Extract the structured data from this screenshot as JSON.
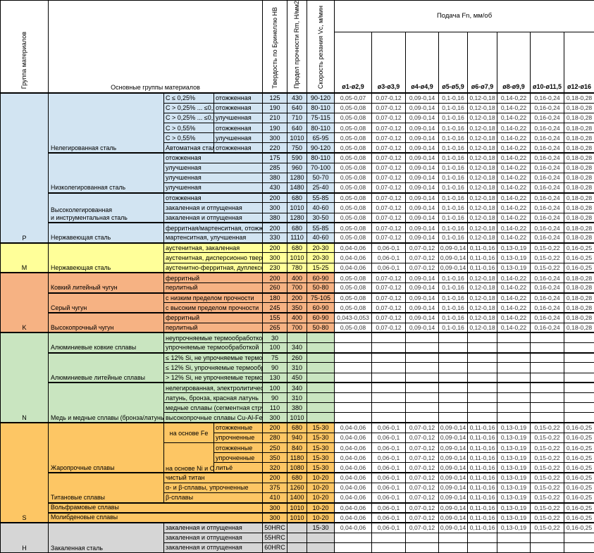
{
  "header": {
    "group_col": "Группа материалов",
    "main_col": "Основные группы материалов",
    "hardness_col": "Твердость по Бринеллю HB",
    "strength_col": "Предел прочности Rm, Н/мм2",
    "speed_col": "Скорость резания Vc, м/мин",
    "feed_title": "Подача Fn, мм/об",
    "feed_cols": [
      "ø1-ø2,9",
      "ø3-ø3,9",
      "ø4-ø4,9",
      "ø5-ø5,9",
      "ø6-ø7,9",
      "ø8-ø9,9",
      "ø10-ø11,5",
      "ø12-ø16"
    ]
  },
  "feed_presets": {
    "p_first": [
      "0,05-0,07",
      "0,07-0,12",
      "0,09-0,14",
      "0,1-0,16",
      "0,12-0,18",
      "0,14-0,22",
      "0,16-0,24",
      "0,18-0,28"
    ],
    "p_std": [
      "0,05-0,08",
      "0,07-0,12",
      "0,09-0,14",
      "0,1-0,16",
      "0,12-0,18",
      "0,14-0,22",
      "0,16-0,24",
      "0,18-0,28"
    ],
    "k_ferrit": [
      "0,043-0,053",
      "0,07-0,12",
      "0,09-0,14",
      "0,1-0,16",
      "0,12-0,18",
      "0,14-0,22",
      "0,16-0,24",
      "0,18-0,28"
    ],
    "m_s_h": [
      "0,04-0,06",
      "0,06-0,1",
      "0,07-0,12",
      "0,09-0,14",
      "0,11-0,16",
      "0,13-0,19",
      "0,15-0,22",
      "0,16-0,25"
    ]
  },
  "groups": [
    {
      "letter": "P",
      "color": "#d2e4f2",
      "blocks": [
        {
          "label": "Нелегированная сталь",
          "rows": [
            {
              "cond": [
                {
                  "t": "C ≤ 0,25%"
                },
                {
                  "t": "отожженная"
                }
              ],
              "hb": "125",
              "rm": "430",
              "vc": "90-120",
              "f": "p_first"
            },
            {
              "cond": [
                {
                  "t": "C > 0,25% ... ≤0,5"
                },
                {
                  "t": "отожженная"
                }
              ],
              "hb": "190",
              "rm": "640",
              "vc": "80-110",
              "f": "p_std"
            },
            {
              "cond": [
                {
                  "t": "C > 0,25% ... ≤0,5"
                },
                {
                  "t": "улучшенная"
                }
              ],
              "hb": "210",
              "rm": "710",
              "vc": "75-115",
              "f": "p_std"
            },
            {
              "cond": [
                {
                  "t": "C > 0,55%"
                },
                {
                  "t": "отожженная"
                }
              ],
              "hb": "190",
              "rm": "640",
              "vc": "80-110",
              "f": "p_std"
            },
            {
              "cond": [
                {
                  "t": "C > 0,55%"
                },
                {
                  "t": "улучшенная"
                }
              ],
              "hb": "300",
              "rm": "1010",
              "vc": "65-95",
              "f": "p_std"
            },
            {
              "cond": [
                {
                  "t": "Автоматная сталь"
                },
                {
                  "t": "отожженная"
                }
              ],
              "hb": "220",
              "rm": "750",
              "vc": "90-120",
              "f": "p_std"
            }
          ]
        },
        {
          "label": "Низколегированная сталь",
          "rows": [
            {
              "cond": [
                {
                  "t": "отожженная",
                  "cs": 2
                }
              ],
              "hb": "175",
              "rm": "590",
              "vc": "80-110",
              "f": "p_std"
            },
            {
              "cond": [
                {
                  "t": "улучшенная",
                  "cs": 2
                }
              ],
              "hb": "285",
              "rm": "960",
              "vc": "70-100",
              "f": "p_std"
            },
            {
              "cond": [
                {
                  "t": "улучшенная",
                  "cs": 2
                }
              ],
              "hb": "380",
              "rm": "1280",
              "vc": "50-70",
              "f": "p_std"
            },
            {
              "cond": [
                {
                  "t": "улучшенная",
                  "cs": 2
                }
              ],
              "hb": "430",
              "rm": "1480",
              "vc": "25-40",
              "f": "p_std"
            }
          ]
        },
        {
          "label": "Высоколегированная\nи инструментальная сталь",
          "rows": [
            {
              "cond": [
                {
                  "t": "отожженная",
                  "cs": 2
                }
              ],
              "hb": "200",
              "rm": "680",
              "vc": "55-85",
              "f": "p_std"
            },
            {
              "cond": [
                {
                  "t": "закаленная и отпущенная",
                  "cs": 2
                }
              ],
              "hb": "300",
              "rm": "1010",
              "vc": "40-60",
              "f": "p_std"
            },
            {
              "cond": [
                {
                  "t": "закаленная и отпущенная",
                  "cs": 2
                }
              ],
              "hb": "380",
              "rm": "1280",
              "vc": "30-50",
              "f": "p_std"
            }
          ]
        },
        {
          "label": "Нержавеющая сталь",
          "rows": [
            {
              "cond": [
                {
                  "t": "ферритная/мартенситная, отожжен",
                  "cs": 2
                }
              ],
              "hb": "200",
              "rm": "680",
              "vc": "55-85",
              "f": "p_std"
            },
            {
              "cond": [
                {
                  "t": "мартенситная, улучшенная",
                  "cs": 2
                }
              ],
              "hb": "330",
              "rm": "1110",
              "vc": "40-60",
              "f": "p_std"
            }
          ]
        }
      ]
    },
    {
      "letter": "M",
      "color": "#ffff99",
      "blocks": [
        {
          "label": "Нержавеющая сталь",
          "rows": [
            {
              "cond": [
                {
                  "t": "аустенитная, закаленная",
                  "cs": 2
                }
              ],
              "hb": "200",
              "rm": "680",
              "vc": "20-30",
              "f": "m_s_h"
            },
            {
              "cond": [
                {
                  "t": "аустенитная, дисперсионно тверде",
                  "cs": 2
                }
              ],
              "hb": "300",
              "rm": "1010",
              "vc": "20-30",
              "f": "m_s_h"
            },
            {
              "cond": [
                {
                  "t": "аустенитно-ферритная, дуплексная",
                  "cs": 2
                }
              ],
              "hb": "230",
              "rm": "780",
              "vc": "15-25",
              "f": "m_s_h"
            }
          ]
        }
      ]
    },
    {
      "letter": "K",
      "color": "#f6b283",
      "blocks": [
        {
          "label": "Ковкий литейный чугун",
          "rows": [
            {
              "cond": [
                {
                  "t": "ферритный",
                  "cs": 2
                }
              ],
              "hb": "200",
              "rm": "400",
              "vc": "60-90",
              "f": "p_std"
            },
            {
              "cond": [
                {
                  "t": "перлитный",
                  "cs": 2
                }
              ],
              "hb": "260",
              "rm": "700",
              "vc": "50-80",
              "f": "p_std"
            }
          ]
        },
        {
          "label": "Серый чугун",
          "rows": [
            {
              "cond": [
                {
                  "t": "с низким пределом прочности",
                  "cs": 2
                }
              ],
              "hb": "180",
              "rm": "200",
              "vc": "75-105",
              "f": "p_std"
            },
            {
              "cond": [
                {
                  "t": "с высоким пределом прочности",
                  "cs": 2
                }
              ],
              "hb": "245",
              "rm": "350",
              "vc": "60-90",
              "f": "p_std"
            }
          ]
        },
        {
          "label": "Высокопрочный чугун",
          "rows": [
            {
              "cond": [
                {
                  "t": "ферритный",
                  "cs": 2
                }
              ],
              "hb": "155",
              "rm": "400",
              "vc": "60-90",
              "f": "k_ferrit"
            },
            {
              "cond": [
                {
                  "t": "перлитный",
                  "cs": 2
                }
              ],
              "hb": "265",
              "rm": "700",
              "vc": "50-80",
              "f": "p_std"
            }
          ]
        }
      ]
    },
    {
      "letter": "N",
      "color": "#c9e5c0",
      "blocks": [
        {
          "label": "Алюминиевые ковкие сплавы",
          "rows": [
            {
              "cond": [
                {
                  "t": "неупрочняемые термообработкой",
                  "cs": 2
                }
              ],
              "hb": "30",
              "rm": "",
              "vc": "",
              "f": null
            },
            {
              "cond": [
                {
                  "t": "упрочняемые термообработкой",
                  "cs": 2
                }
              ],
              "hb": "100",
              "rm": "340",
              "vc": "",
              "f": null
            }
          ]
        },
        {
          "label": "Алюминиевые литейные сплавы",
          "rows": [
            {
              "cond": [
                {
                  "t": "≤ 12% Si, не упрочняемые термооб",
                  "cs": 2
                }
              ],
              "hb": "75",
              "rm": "260",
              "vc": "",
              "f": null
            },
            {
              "cond": [
                {
                  "t": "≤ 12% Si, упрочняемые термообраб",
                  "cs": 2
                }
              ],
              "hb": "90",
              "rm": "310",
              "vc": "",
              "f": null
            },
            {
              "cond": [
                {
                  "t": "> 12% Si, не упрочняемые термооб",
                  "cs": 2
                }
              ],
              "hb": "130",
              "rm": "450",
              "vc": "",
              "f": null
            }
          ]
        },
        {
          "label": "Медь и медные сплавы (бронза/латунь)",
          "rows": [
            {
              "cond": [
                {
                  "t": "нелегированная, электролитическа",
                  "cs": 2
                }
              ],
              "hb": "100",
              "rm": "340",
              "vc": "",
              "f": null
            },
            {
              "cond": [
                {
                  "t": "латунь, бронза, красная латунь",
                  "cs": 2
                }
              ],
              "hb": "90",
              "rm": "310",
              "vc": "",
              "f": null
            },
            {
              "cond": [
                {
                  "t": "медные сплавы (сегментная стружк",
                  "cs": 2
                }
              ],
              "hb": "110",
              "rm": "380",
              "vc": "",
              "f": null
            },
            {
              "cond": [
                {
                  "t": "высокопрочные сплавы Cu-Al-Fe",
                  "cs": 2
                }
              ],
              "hb": "300",
              "rm": "1010",
              "vc": "",
              "f": null
            }
          ]
        }
      ]
    },
    {
      "letter": "S",
      "color": "#fdc664",
      "blocks": [
        {
          "label": "Жаропрочные сплавы",
          "rows": [
            {
              "cond": [
                {
                  "t": "на основе Fe",
                  "rs": 2,
                  "al": "center"
                },
                {
                  "t": "отожженные"
                }
              ],
              "hb": "200",
              "rm": "680",
              "vc": "15-30",
              "f": "m_s_h"
            },
            {
              "cond": [
                {
                  "t": "упрочненные"
                }
              ],
              "hb": "280",
              "rm": "940",
              "vc": "15-30",
              "f": "m_s_h"
            },
            {
              "cond": [
                {
                  "t": "на основе Ni и Co",
                  "rs": 3,
                  "va": "bottom"
                },
                {
                  "t": "отожженные"
                }
              ],
              "hb": "250",
              "rm": "840",
              "vc": "15-30",
              "f": "m_s_h"
            },
            {
              "cond": [
                {
                  "t": "упрочненные"
                }
              ],
              "hb": "350",
              "rm": "1180",
              "vc": "15-30",
              "f": "m_s_h"
            },
            {
              "cond": [
                {
                  "t": "литьё"
                }
              ],
              "hb": "320",
              "rm": "1080",
              "vc": "15-30",
              "f": "m_s_h"
            }
          ]
        },
        {
          "label": "Титановые сплавы",
          "rows": [
            {
              "cond": [
                {
                  "t": "чистый титан",
                  "cs": 2
                }
              ],
              "hb": "200",
              "rm": "680",
              "vc": "10-20",
              "f": "m_s_h"
            },
            {
              "cond": [
                {
                  "t": "α- и β-сплавы, упрочненные",
                  "cs": 2
                }
              ],
              "hb": "375",
              "rm": "1260",
              "vc": "10-20",
              "f": "m_s_h"
            },
            {
              "cond": [
                {
                  "t": "β-сплавы",
                  "cs": 2
                }
              ],
              "hb": "410",
              "rm": "1400",
              "vc": "10-20",
              "f": "m_s_h"
            }
          ]
        },
        {
          "label": "Вольфрамовые сплавы",
          "wide": true,
          "rows": [
            {
              "cond": [],
              "hb": "300",
              "rm": "1010",
              "vc": "10-20",
              "f": "m_s_h"
            }
          ]
        },
        {
          "label": "Молибденовые сплавы",
          "wide": true,
          "rows": [
            {
              "cond": [],
              "hb": "300",
              "rm": "1010",
              "vc": "10-20",
              "f": "m_s_h"
            }
          ]
        }
      ]
    },
    {
      "letter": "H",
      "color": "#d6d6d6",
      "blocks": [
        {
          "label": "Закаленная сталь",
          "rows": [
            {
              "cond": [
                {
                  "t": "закаленная и отпущенная",
                  "cs": 2
                }
              ],
              "hb": "50HRC",
              "rm": "",
              "vc": "15-30",
              "f": "m_s_h"
            },
            {
              "cond": [
                {
                  "t": "закаленная и отпущенная",
                  "cs": 2
                }
              ],
              "hb": "55HRC",
              "rm": "",
              "vc": "",
              "f": null
            },
            {
              "cond": [
                {
                  "t": "закаленная и отпущенная",
                  "cs": 2
                }
              ],
              "hb": "60HRC",
              "rm": "",
              "vc": "",
              "f": null
            }
          ]
        }
      ]
    }
  ]
}
